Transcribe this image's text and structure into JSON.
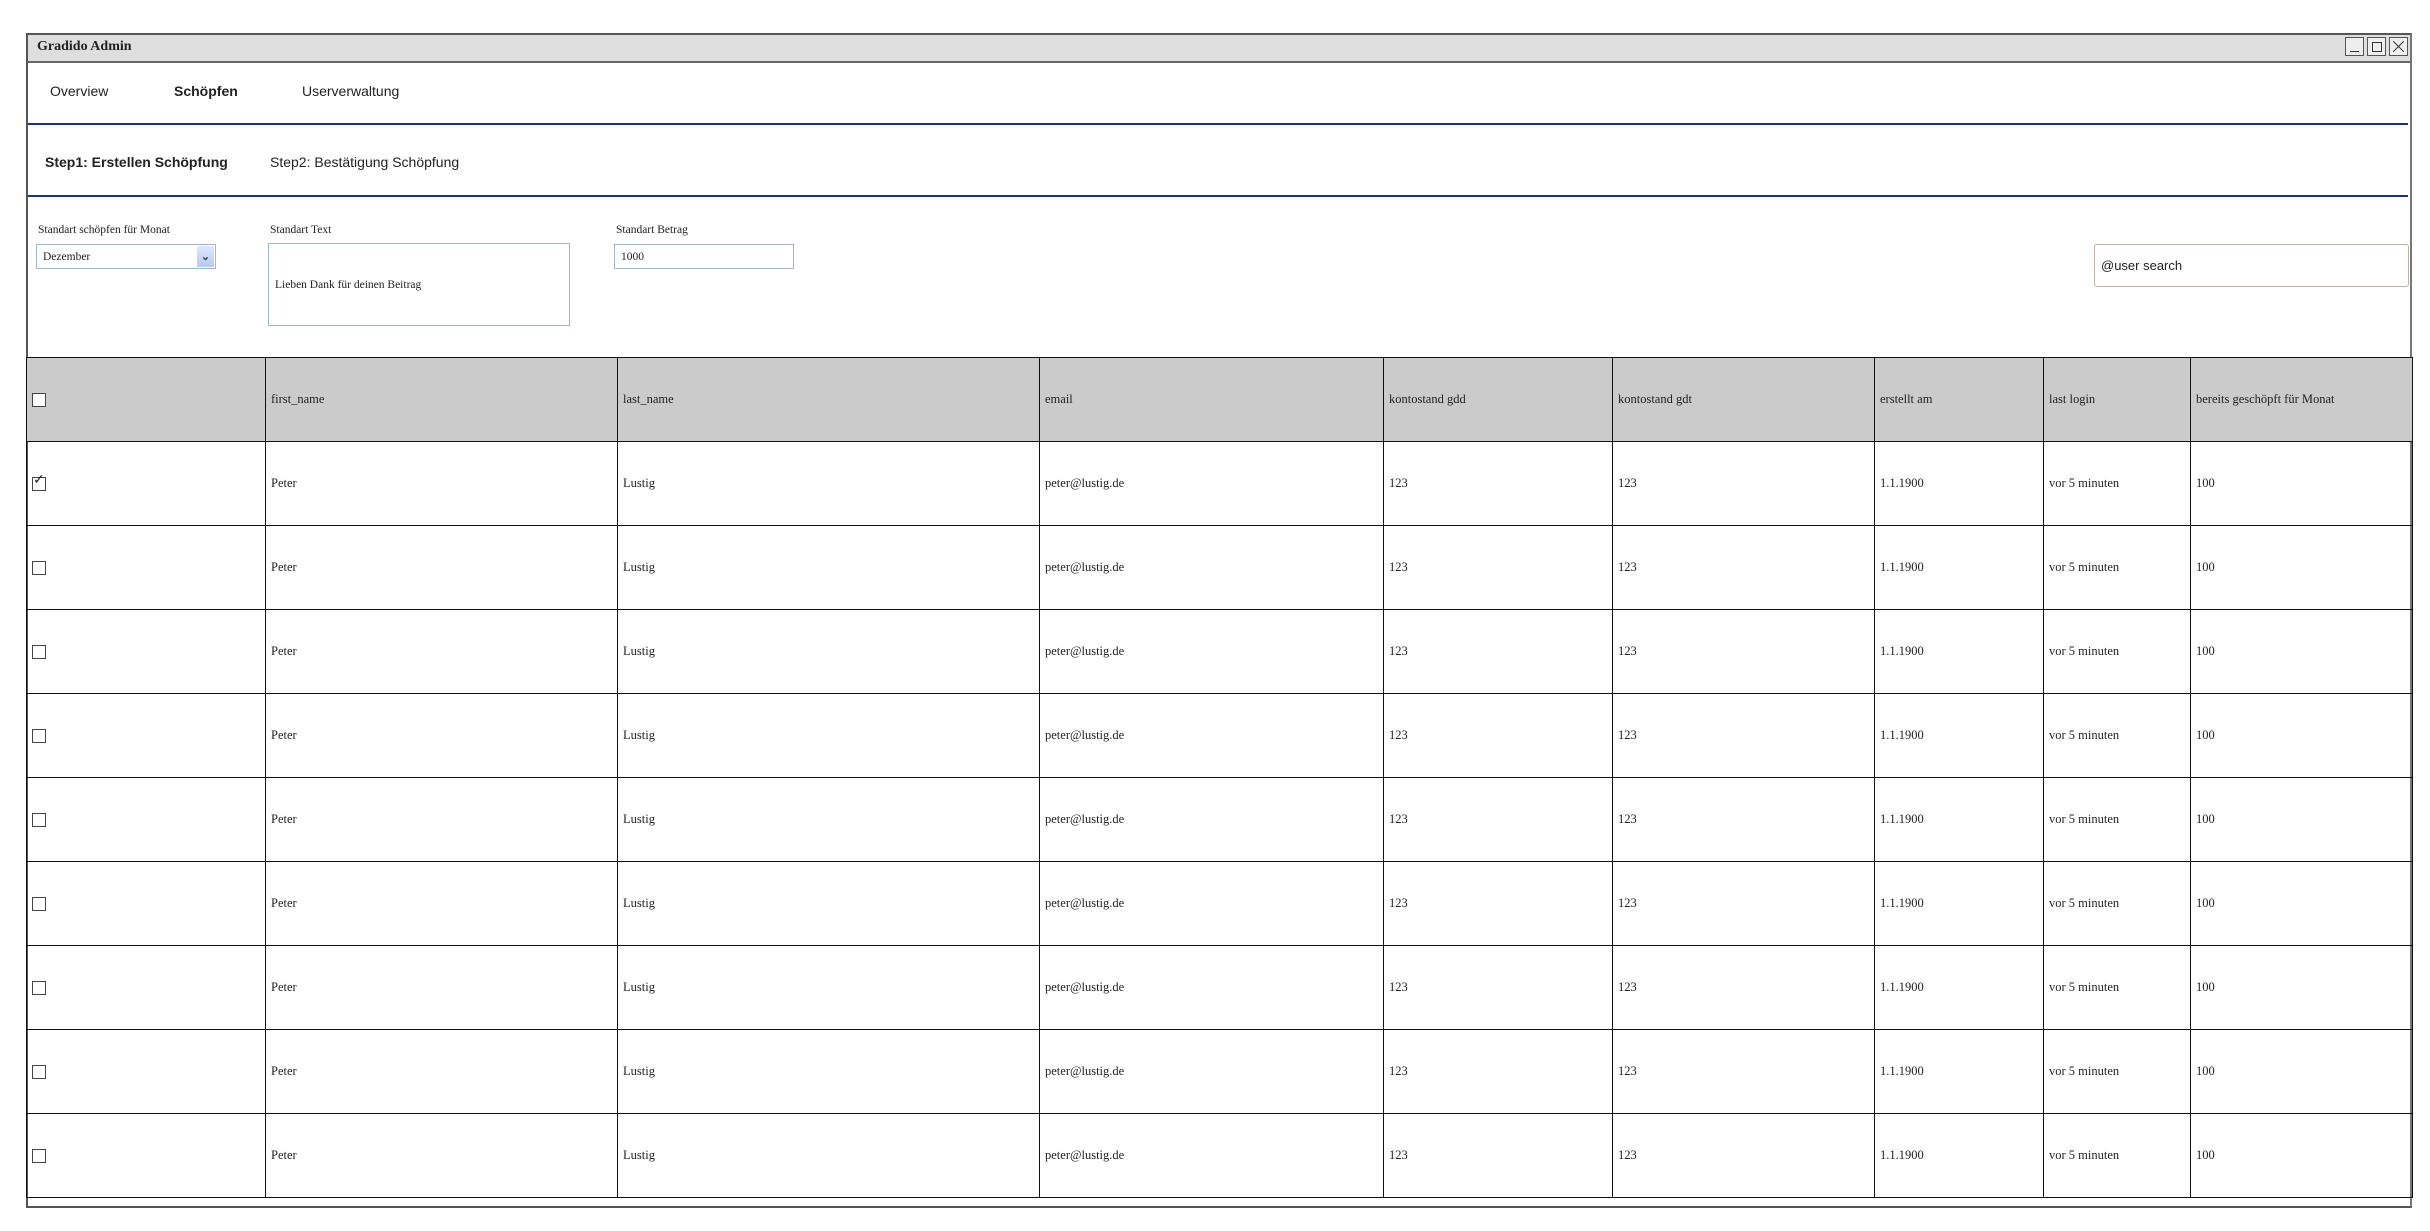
{
  "window": {
    "title": "Gradido Admin"
  },
  "nav": {
    "items": [
      {
        "label": "Overview",
        "active": false
      },
      {
        "label": "Schöpfen",
        "active": true
      },
      {
        "label": "Userverwaltung",
        "active": false
      }
    ]
  },
  "steps": {
    "step1": "Step1: Erstellen Schöpfung",
    "step2": "Step2: Bestätigung Schöpfung"
  },
  "form": {
    "month_label": "Standart schöpfen für Monat",
    "month_value": "Dezember",
    "text_label": "Standart Text",
    "text_value": "Lieben Dank für deinen Beitrag",
    "amount_label": "Standart Betrag",
    "amount_value": "1000",
    "search_value": "@user search"
  },
  "colors": {
    "accent_line": "#1f3280",
    "header_bg": "#cbcbcb"
  },
  "table": {
    "columns": [
      "",
      "first_name",
      "last_name",
      "email",
      "kontostand gdd",
      "kontostand gdt",
      "erstellt am",
      "last login",
      "bereits geschöpft für Monat"
    ],
    "header_checked": false,
    "rows": [
      {
        "checked": true,
        "cells": [
          "Peter",
          "Lustig",
          "peter@lustig.de",
          "123",
          "123",
          "1.1.1900",
          "vor 5 minuten",
          "100"
        ]
      },
      {
        "checked": false,
        "cells": [
          "Peter",
          "Lustig",
          "peter@lustig.de",
          "123",
          "123",
          "1.1.1900",
          "vor 5 minuten",
          "100"
        ]
      },
      {
        "checked": false,
        "cells": [
          "Peter",
          "Lustig",
          "peter@lustig.de",
          "123",
          "123",
          "1.1.1900",
          "vor 5 minuten",
          "100"
        ]
      },
      {
        "checked": false,
        "cells": [
          "Peter",
          "Lustig",
          "peter@lustig.de",
          "123",
          "123",
          "1.1.1900",
          "vor 5 minuten",
          "100"
        ]
      },
      {
        "checked": false,
        "cells": [
          "Peter",
          "Lustig",
          "peter@lustig.de",
          "123",
          "123",
          "1.1.1900",
          "vor 5 minuten",
          "100"
        ]
      },
      {
        "checked": false,
        "cells": [
          "Peter",
          "Lustig",
          "peter@lustig.de",
          "123",
          "123",
          "1.1.1900",
          "vor 5 minuten",
          "100"
        ]
      },
      {
        "checked": false,
        "cells": [
          "Peter",
          "Lustig",
          "peter@lustig.de",
          "123",
          "123",
          "1.1.1900",
          "vor 5 minuten",
          "100"
        ]
      },
      {
        "checked": false,
        "cells": [
          "Peter",
          "Lustig",
          "peter@lustig.de",
          "123",
          "123",
          "1.1.1900",
          "vor 5 minuten",
          "100"
        ]
      },
      {
        "checked": false,
        "cells": [
          "Peter",
          "Lustig",
          "peter@lustig.de",
          "123",
          "123",
          "1.1.1900",
          "vor 5 minuten",
          "100"
        ]
      }
    ]
  }
}
